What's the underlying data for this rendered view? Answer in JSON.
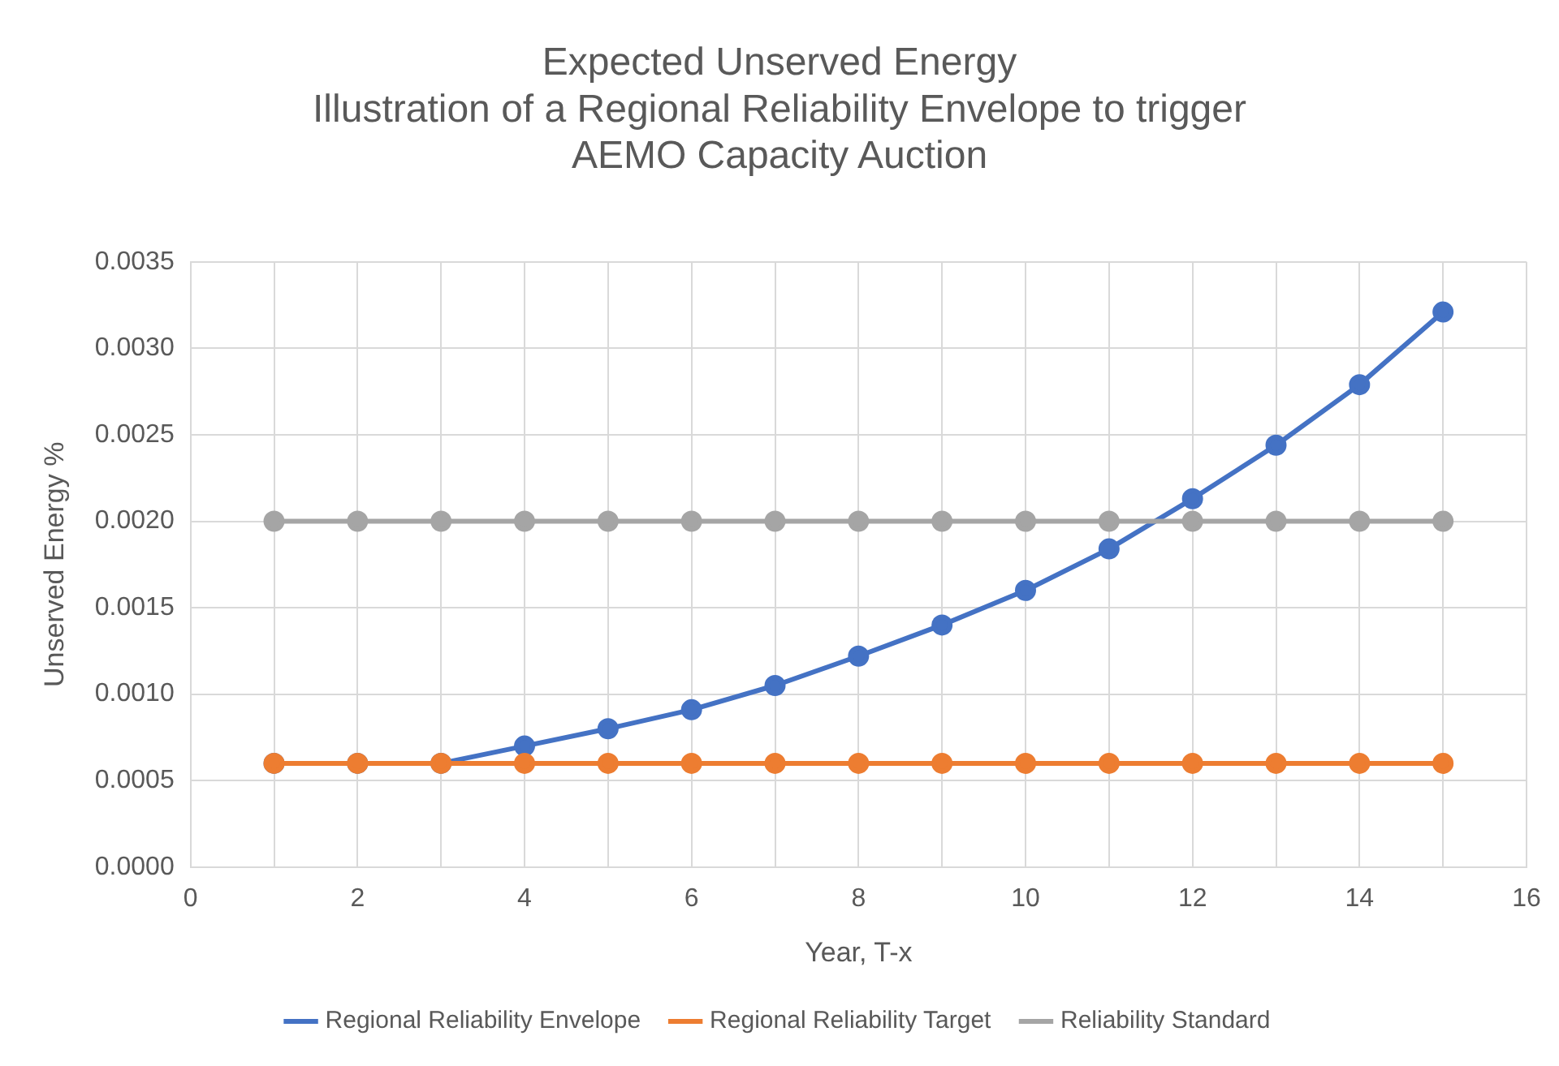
{
  "chart_data": {
    "type": "line",
    "title": [
      "Expected Unserved Energy",
      "Illustration of a Regional Reliability Envelope to trigger",
      "AEMO Capacity Auction"
    ],
    "xlabel": "Year, T-x",
    "ylabel": "Unserved Energy %",
    "x": [
      1,
      2,
      3,
      4,
      5,
      6,
      7,
      8,
      9,
      10,
      11,
      12,
      13,
      14,
      15
    ],
    "series": [
      {
        "name": "Regional Reliability Envelope",
        "color": "#4472c4",
        "values": [
          0.0006,
          0.0006,
          0.0006,
          0.0007,
          0.0008,
          0.00091,
          0.00105,
          0.00122,
          0.0014,
          0.0016,
          0.00184,
          0.00213,
          0.00244,
          0.00279,
          0.00321
        ]
      },
      {
        "name": "Regional Reliability Target",
        "color": "#ed7d31",
        "values": [
          0.0006,
          0.0006,
          0.0006,
          0.0006,
          0.0006,
          0.0006,
          0.0006,
          0.0006,
          0.0006,
          0.0006,
          0.0006,
          0.0006,
          0.0006,
          0.0006,
          0.0006
        ]
      },
      {
        "name": "Reliability Standard",
        "color": "#a5a5a5",
        "values": [
          0.002,
          0.002,
          0.002,
          0.002,
          0.002,
          0.002,
          0.002,
          0.002,
          0.002,
          0.002,
          0.002,
          0.002,
          0.002,
          0.002,
          0.002
        ]
      }
    ],
    "xlim": [
      0,
      16
    ],
    "xticks": [
      0,
      {
        "value": 1,
        "label": null
      },
      2,
      {
        "value": 3,
        "label": null
      },
      4,
      {
        "value": 5,
        "label": null
      },
      6,
      {
        "value": 7,
        "label": null
      },
      8,
      {
        "value": 9,
        "label": null
      },
      10,
      {
        "value": 11,
        "label": null
      },
      12,
      {
        "value": 13,
        "label": null
      },
      14,
      {
        "value": 15,
        "label": null
      },
      16
    ],
    "ylim": [
      0,
      0.0035
    ],
    "yticks": [
      {
        "value": 0,
        "label": "0.0000"
      },
      {
        "value": 0.0005,
        "label": "0.0005"
      },
      {
        "value": 0.001,
        "label": "0.0010"
      },
      {
        "value": 0.0015,
        "label": "0.0015"
      },
      {
        "value": 0.002,
        "label": "0.0020"
      },
      {
        "value": 0.0025,
        "label": "0.0025"
      },
      {
        "value": 0.003,
        "label": "0.0030"
      },
      {
        "value": 0.0035,
        "label": "0.0035"
      }
    ],
    "grid": true,
    "legend": "bottom",
    "marker": "circle",
    "line_style": "solid"
  }
}
